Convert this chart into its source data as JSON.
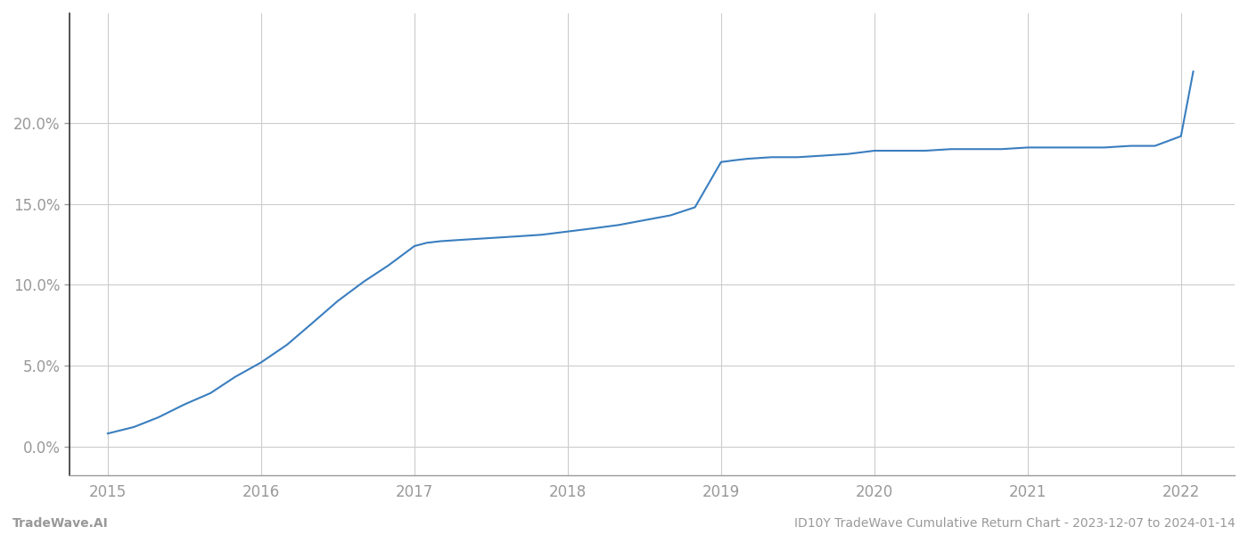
{
  "x_values": [
    2015.0,
    2015.17,
    2015.33,
    2015.5,
    2015.67,
    2015.83,
    2016.0,
    2016.17,
    2016.33,
    2016.5,
    2016.67,
    2016.83,
    2017.0,
    2017.08,
    2017.17,
    2017.33,
    2017.5,
    2017.67,
    2017.83,
    2018.0,
    2018.17,
    2018.33,
    2018.5,
    2018.67,
    2018.83,
    2019.0,
    2019.08,
    2019.17,
    2019.33,
    2019.5,
    2019.67,
    2019.83,
    2020.0,
    2020.17,
    2020.33,
    2020.5,
    2020.67,
    2020.83,
    2021.0,
    2021.17,
    2021.33,
    2021.5,
    2021.67,
    2021.83,
    2022.0,
    2022.08
  ],
  "y_values": [
    0.008,
    0.012,
    0.018,
    0.026,
    0.033,
    0.043,
    0.052,
    0.063,
    0.076,
    0.09,
    0.102,
    0.112,
    0.124,
    0.126,
    0.127,
    0.128,
    0.129,
    0.13,
    0.131,
    0.133,
    0.135,
    0.137,
    0.14,
    0.143,
    0.148,
    0.176,
    0.177,
    0.178,
    0.179,
    0.179,
    0.18,
    0.181,
    0.183,
    0.183,
    0.183,
    0.184,
    0.184,
    0.184,
    0.185,
    0.185,
    0.185,
    0.185,
    0.186,
    0.186,
    0.192,
    0.232
  ],
  "line_color": "#3a7ebf",
  "line_width": 1.5,
  "background_color": "#ffffff",
  "grid_color": "#cccccc",
  "tick_color": "#999999",
  "left_spine_color": "#333333",
  "bottom_spine_color": "#999999",
  "x_ticks": [
    2015,
    2016,
    2017,
    2018,
    2019,
    2020,
    2021,
    2022
  ],
  "y_ticks": [
    0.0,
    0.05,
    0.1,
    0.15,
    0.2
  ],
  "y_tick_labels": [
    "0.0%",
    "5.0%",
    "10.0%",
    "15.0%",
    "20.0%"
  ],
  "xlim": [
    2014.75,
    2022.35
  ],
  "ylim": [
    -0.018,
    0.268
  ],
  "footer_left": "TradeWave.AI",
  "footer_right": "ID10Y TradeWave Cumulative Return Chart - 2023-12-07 to 2024-01-14",
  "footer_fontsize": 10,
  "tick_fontsize": 12,
  "figsize": [
    14.0,
    6.0
  ],
  "dpi": 100
}
